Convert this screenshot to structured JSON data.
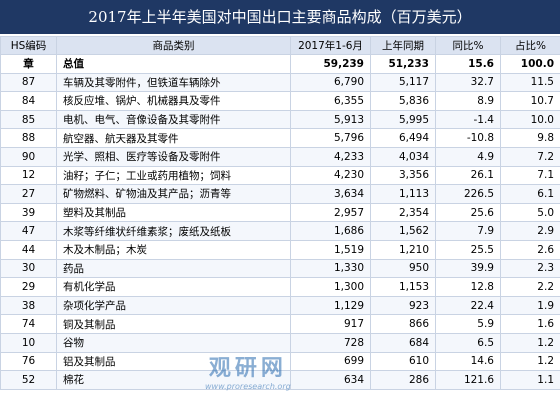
{
  "header": {
    "title": "2017年上半年美国对中国出口主要商品构成（百万美元）"
  },
  "table": {
    "columns": [
      "HS编码",
      "商品类别",
      "2017年1-6月",
      "上年同期",
      "同比%",
      "占比%"
    ],
    "rows": [
      [
        "章",
        "总值",
        "59,239",
        "51,233",
        "15.6",
        "100.0"
      ],
      [
        "87",
        "车辆及其零附件，但铁道车辆除外",
        "6,790",
        "5,117",
        "32.7",
        "11.5"
      ],
      [
        "84",
        "核反应堆、锅炉、机械器具及零件",
        "6,355",
        "5,836",
        "8.9",
        "10.7"
      ],
      [
        "85",
        "电机、电气、音像设备及其零附件",
        "5,913",
        "5,995",
        "-1.4",
        "10.0"
      ],
      [
        "88",
        "航空器、航天器及其零件",
        "5,796",
        "6,494",
        "-10.8",
        "9.8"
      ],
      [
        "90",
        "光学、照相、医疗等设备及零附件",
        "4,233",
        "4,034",
        "4.9",
        "7.2"
      ],
      [
        "12",
        "油籽；子仁；工业或药用植物；饲料",
        "4,230",
        "3,356",
        "26.1",
        "7.1"
      ],
      [
        "27",
        "矿物燃料、矿物油及其产品；沥青等",
        "3,634",
        "1,113",
        "226.5",
        "6.1"
      ],
      [
        "39",
        "塑料及其制品",
        "2,957",
        "2,354",
        "25.6",
        "5.0"
      ],
      [
        "47",
        "木浆等纤维状纤维素浆；废纸及纸板",
        "1,686",
        "1,562",
        "7.9",
        "2.9"
      ],
      [
        "44",
        "木及木制品；木炭",
        "1,519",
        "1,210",
        "25.5",
        "2.6"
      ],
      [
        "30",
        "药品",
        "1,330",
        "950",
        "39.9",
        "2.3"
      ],
      [
        "29",
        "有机化学品",
        "1,300",
        "1,153",
        "12.8",
        "2.2"
      ],
      [
        "38",
        "杂项化学产品",
        "1,129",
        "923",
        "22.4",
        "1.9"
      ],
      [
        "74",
        "铜及其制品",
        "917",
        "866",
        "5.9",
        "1.6"
      ],
      [
        "10",
        "谷物",
        "728",
        "684",
        "6.5",
        "1.2"
      ],
      [
        "76",
        "铝及其制品",
        "699",
        "610",
        "14.6",
        "1.2"
      ],
      [
        "52",
        "棉花",
        "634",
        "286",
        "121.6",
        "1.1"
      ]
    ]
  },
  "watermark": {
    "name": "观研网",
    "url": "www.proresearch.org"
  }
}
